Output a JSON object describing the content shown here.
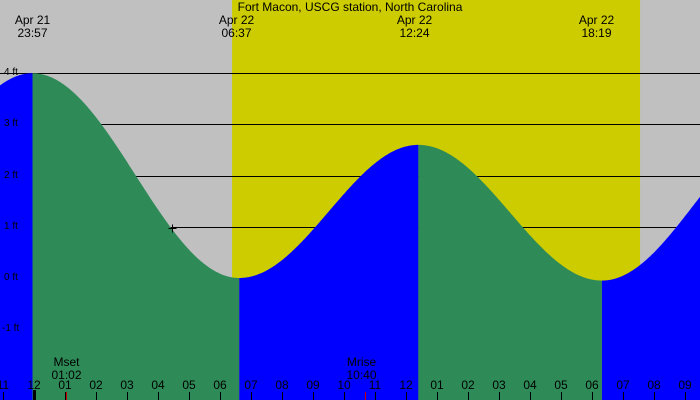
{
  "chart_data": {
    "type": "area",
    "title": "Fort Macon, USCG station, North Carolina",
    "xlabel": "",
    "ylabel": "",
    "y_unit": "ft",
    "ylim": [
      -1.2,
      4.6
    ],
    "y_ticks": [
      "4 ft",
      "3 ft",
      "2 ft",
      "1 ft",
      "0 ft",
      "-1 ft"
    ],
    "y_tick_values": [
      4,
      3,
      2,
      1,
      0,
      -1
    ],
    "x_tick_labels": [
      "11",
      "12",
      "01",
      "02",
      "03",
      "04",
      "05",
      "06",
      "07",
      "08",
      "09",
      "10",
      "11",
      "12",
      "01",
      "02",
      "03",
      "04",
      "05",
      "06",
      "07",
      "08",
      "09"
    ],
    "x_tick_hours": [
      -1,
      0,
      1,
      2,
      3,
      4,
      5,
      6,
      7,
      8,
      9,
      10,
      11,
      12,
      13,
      14,
      15,
      16,
      17,
      18,
      19,
      20,
      21
    ],
    "tide_extremes": [
      {
        "date": "Apr 21",
        "time": "23:57",
        "hour": -0.05,
        "type": "high",
        "height_ft": 4.0
      },
      {
        "date": "Apr 22",
        "time": "06:37",
        "hour": 6.62,
        "type": "low",
        "height_ft": 0.0
      },
      {
        "date": "Apr 22",
        "time": "12:24",
        "hour": 12.4,
        "type": "high",
        "height_ft": 2.6
      },
      {
        "date": "Apr 22",
        "time": "18:19",
        "hour": 18.32,
        "type": "low",
        "height_ft": -0.05
      }
    ],
    "daylight": {
      "start_hour": 6.39,
      "end_hour": 19.55
    },
    "moon_events": [
      {
        "label": "Mset",
        "time": "01:02",
        "hour": 1.03
      },
      {
        "label": "Mrise",
        "time": "10:40",
        "hour": 10.67
      }
    ],
    "current_marker": {
      "hour": 4.45,
      "height_ft": 0.97
    },
    "colors": {
      "background": "#c0c0c0",
      "daylight": "#cccc00",
      "rising": "#0000ff",
      "falling": "#2e8b57",
      "grid": "#000000",
      "moon_tick": "#cc0000"
    }
  },
  "header": {
    "title": "Fort Macon, USCG station, North Carolina",
    "events": [
      {
        "date": "Apr 21",
        "time": "23:57"
      },
      {
        "date": "Apr 22",
        "time": "06:37"
      },
      {
        "date": "Apr 22",
        "time": "12:24"
      },
      {
        "date": "Apr 22",
        "time": "18:19"
      }
    ]
  },
  "moon": {
    "set_label": "Mset",
    "set_time": "01:02",
    "rise_label": "Mrise",
    "rise_time": "10:40"
  }
}
